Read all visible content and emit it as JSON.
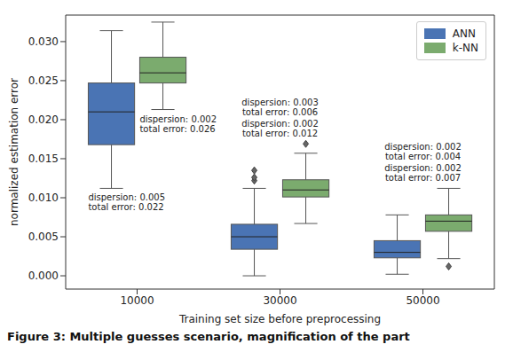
{
  "chart_data": {
    "type": "box",
    "x_label": "Training set size before preprocessing",
    "y_label": "normalized estimation error",
    "caption": "Figure 3: Multiple guesses scenario, magnification of the part",
    "categories": [
      "10000",
      "30000",
      "50000"
    ],
    "ylim": [
      -0.0017,
      0.0334
    ],
    "yticks": [
      {
        "value": 0,
        "label": "0.000"
      },
      {
        "value": 0.005,
        "label": "0.005"
      },
      {
        "value": 0.01,
        "label": "0.010"
      },
      {
        "value": 0.015,
        "label": "0.015"
      },
      {
        "value": 0.02,
        "label": "0.020"
      },
      {
        "value": 0.025,
        "label": "0.025"
      },
      {
        "value": 0.03,
        "label": "0.030"
      }
    ],
    "grid": false,
    "legend": "upper right",
    "series": [
      {
        "name": "ANN",
        "color": "#4a74b4",
        "values": [
          {
            "min": 0.0112,
            "q1": 0.0168,
            "median": 0.021,
            "q3": 0.0247,
            "max": 0.0314,
            "outliers": []
          },
          {
            "min": 0.0,
            "q1": 0.0034,
            "median": 0.005,
            "q3": 0.0066,
            "max": 0.0112,
            "outliers": [
              0.0122,
              0.0126,
              0.0135
            ]
          },
          {
            "min": 0.0002,
            "q1": 0.0023,
            "median": 0.003,
            "q3": 0.0045,
            "max": 0.0078,
            "outliers": []
          }
        ],
        "annotations": [
          [
            "dispersion: 0.005",
            "total error: 0.022"
          ],
          [
            "dispersion: 0.003",
            "total error: 0.006"
          ],
          [
            "dispersion: 0.002",
            "total error: 0.004"
          ]
        ]
      },
      {
        "name": "k-NN",
        "color": "#7bab6e",
        "values": [
          {
            "min": 0.0213,
            "q1": 0.0247,
            "median": 0.026,
            "q3": 0.028,
            "max": 0.0325,
            "outliers": []
          },
          {
            "min": 0.0067,
            "q1": 0.0101,
            "median": 0.011,
            "q3": 0.0123,
            "max": 0.0157,
            "outliers": [
              0.0169
            ]
          },
          {
            "min": 0.0022,
            "q1": 0.0057,
            "median": 0.007,
            "q3": 0.0078,
            "max": 0.0112,
            "outliers": [
              0.0012
            ]
          }
        ],
        "annotations": [
          [
            "dispersion: 0.002",
            "total error: 0.026"
          ],
          [
            "dispersion: 0.002",
            "total error: 0.012"
          ],
          [
            "dispersion: 0.002",
            "total error: 0.007"
          ]
        ]
      }
    ]
  }
}
